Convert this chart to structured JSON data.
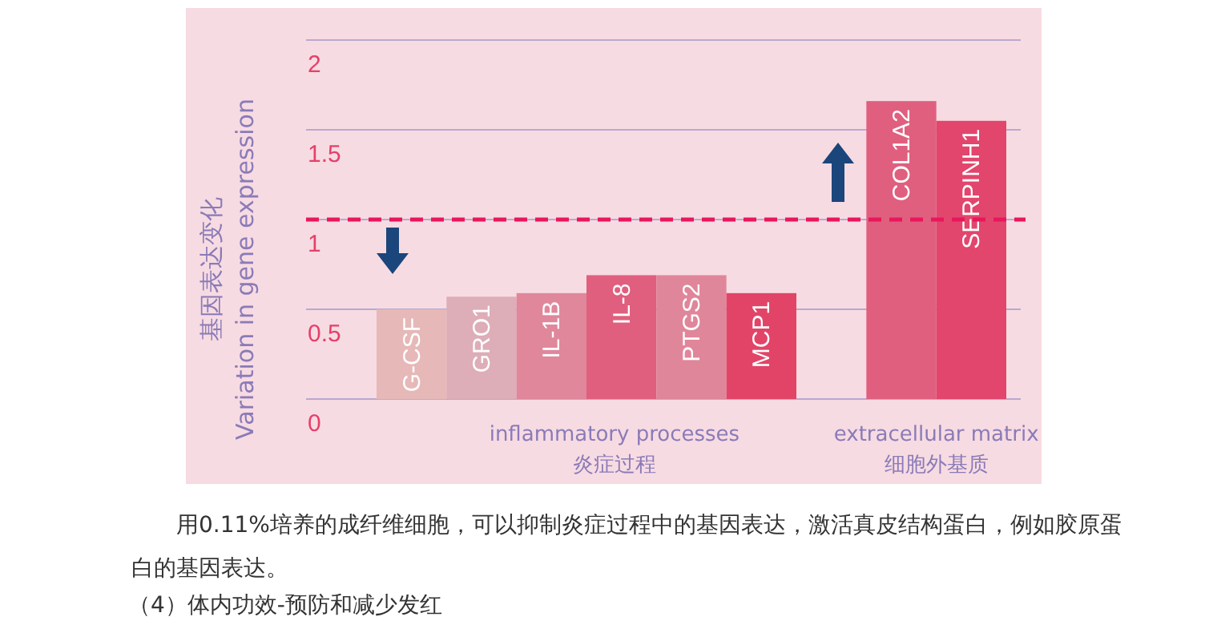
{
  "chart_data": {
    "type": "bar",
    "categories": [
      "G-CSF",
      "GRO1",
      "IL-1B",
      "IL-8",
      "PTGS2",
      "MCP1",
      null,
      "COL1A2",
      "SERPINH1"
    ],
    "values": [
      0.5,
      0.57,
      0.59,
      0.69,
      0.69,
      0.59,
      null,
      1.66,
      1.55
    ],
    "colors": [
      "#e6b8b8",
      "#ddadb8",
      "#e0879c",
      "#e05f7e",
      "#e0869a",
      "#e24468",
      null,
      "#e05f7e",
      "#e2466c"
    ],
    "ylabel": "基因表达变化\nVariation in gene expression",
    "ylim": [
      0,
      2
    ],
    "yticks": [
      0,
      0.5,
      1,
      1.5,
      2
    ],
    "grid": "y",
    "ref_lines": [
      {
        "axis": "y",
        "value": 1,
        "color": "#e8175d",
        "line_style": "dashed"
      }
    ],
    "annotations": [
      "inflammatory processes\n炎症过程",
      "extracellular matrix\n细胞外基质",
      "用0.11%培养的成纤维细胞，可以抑制炎症过程中的基因表达，激活真皮结构蛋白，例如胶原蛋白的基因表达。",
      "（4）体内功效-预防和减少发红"
    ]
  }
}
